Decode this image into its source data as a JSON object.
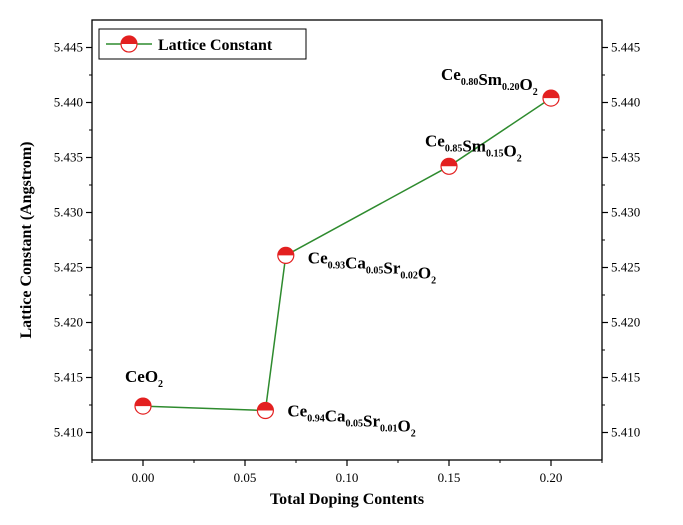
{
  "chart_data": {
    "type": "line",
    "xlabel": "Total Doping Contents",
    "ylabel": "Lattice Constant (Angstrom)",
    "xlim": [
      -0.025,
      0.225
    ],
    "ylim": [
      5.4075,
      5.4475
    ],
    "x_ticks": [
      0.0,
      0.05,
      0.1,
      0.15,
      0.2
    ],
    "x_tick_labels": [
      "0.00",
      "0.05",
      "0.10",
      "0.15",
      "0.20"
    ],
    "y_ticks": [
      5.41,
      5.415,
      5.42,
      5.425,
      5.43,
      5.435,
      5.44,
      5.445
    ],
    "y_tick_labels": [
      "5.410",
      "5.415",
      "5.420",
      "5.425",
      "5.430",
      "5.435",
      "5.440",
      "5.445"
    ],
    "right_axis_mirrored": true,
    "legend": {
      "position": "top-left",
      "entries": [
        "Lattice Constant"
      ]
    },
    "series": [
      {
        "name": "Lattice Constant",
        "color": "#2e8b2e",
        "marker_color": "#e32020",
        "points": [
          {
            "x": 0.0,
            "y": 5.4124
          },
          {
            "x": 0.06,
            "y": 5.412
          },
          {
            "x": 0.07,
            "y": 5.4261
          },
          {
            "x": 0.15,
            "y": 5.4342
          },
          {
            "x": 0.2,
            "y": 5.4404
          }
        ]
      }
    ],
    "annotations": [
      {
        "x": 0.0,
        "y": 5.4124,
        "parts": [
          [
            "CeO",
            ""
          ],
          [
            "2",
            "sub"
          ]
        ]
      },
      {
        "x": 0.06,
        "y": 5.412,
        "parts": [
          [
            "Ce",
            ""
          ],
          [
            "0.94",
            "sub"
          ],
          [
            "Ca",
            ""
          ],
          [
            "0.05",
            "sub"
          ],
          [
            "Sr",
            ""
          ],
          [
            "0.01",
            "sub"
          ],
          [
            "O",
            ""
          ],
          [
            "2",
            "sub"
          ]
        ]
      },
      {
        "x": 0.07,
        "y": 5.4261,
        "parts": [
          [
            "Ce",
            ""
          ],
          [
            "0.93",
            "sub"
          ],
          [
            "Ca",
            ""
          ],
          [
            "0.05",
            "sub"
          ],
          [
            "Sr",
            ""
          ],
          [
            "0.02",
            "sub"
          ],
          [
            "O",
            ""
          ],
          [
            "2",
            "sub"
          ]
        ]
      },
      {
        "x": 0.15,
        "y": 5.4342,
        "parts": [
          [
            "Ce",
            ""
          ],
          [
            "0.85",
            "sub"
          ],
          [
            "Sm",
            ""
          ],
          [
            "0.15",
            "sub"
          ],
          [
            "O",
            ""
          ],
          [
            "2",
            "sub"
          ]
        ]
      },
      {
        "x": 0.2,
        "y": 5.4404,
        "parts": [
          [
            "Ce",
            ""
          ],
          [
            "0.80",
            "sub"
          ],
          [
            "Sm",
            ""
          ],
          [
            "0.20",
            "sub"
          ],
          [
            "O",
            ""
          ],
          [
            "2",
            "sub"
          ]
        ]
      }
    ]
  }
}
